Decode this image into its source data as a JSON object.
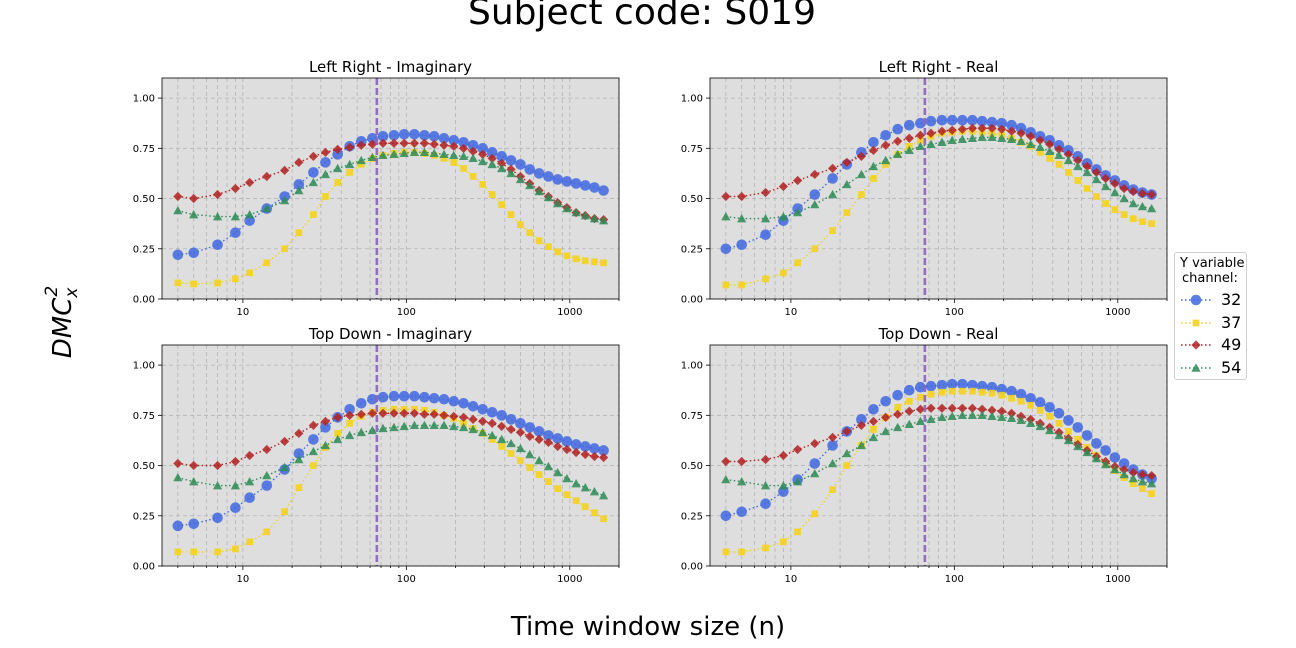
{
  "figure": {
    "suptitle": "Subject code: S019",
    "xlabel": "Time window size (n)",
    "ylabel_base": "DMC",
    "ylabel_sup": "2",
    "ylabel_sub": "x"
  },
  "legend": {
    "title_line1": "Y variable",
    "title_line2": "channel:",
    "entries": [
      {
        "label": "32",
        "color": "#4169e1",
        "marker": "circle"
      },
      {
        "label": "37",
        "color": "#f5d21f",
        "marker": "square"
      },
      {
        "label": "49",
        "color": "#b22222",
        "marker": "diamond"
      },
      {
        "label": "54",
        "color": "#2e8b57",
        "marker": "triangle"
      }
    ]
  },
  "chart_data": [
    {
      "type": "line",
      "title": "Left Right - Imaginary",
      "x_scale": "log",
      "xlim": [
        3.2,
        2000
      ],
      "ylim": [
        0,
        1.1
      ],
      "xticks": [
        10,
        100,
        1000
      ],
      "yticks": [
        0.0,
        0.25,
        0.5,
        0.75,
        1.0
      ],
      "vline_x": 66,
      "grid": true,
      "x": [
        4,
        5,
        7,
        9,
        11,
        14,
        18,
        22,
        27,
        32,
        38,
        45,
        53,
        62,
        72,
        84,
        97,
        112,
        129,
        148,
        170,
        195,
        224,
        256,
        293,
        335,
        383,
        437,
        499,
        569,
        649,
        740,
        843,
        960,
        1093,
        1244,
        1415,
        1610
      ],
      "series": [
        {
          "name": "32",
          "values": [
            0.22,
            0.23,
            0.27,
            0.33,
            0.39,
            0.45,
            0.51,
            0.57,
            0.63,
            0.68,
            0.72,
            0.76,
            0.785,
            0.8,
            0.81,
            0.815,
            0.82,
            0.82,
            0.815,
            0.81,
            0.8,
            0.79,
            0.78,
            0.765,
            0.75,
            0.73,
            0.71,
            0.69,
            0.67,
            0.645,
            0.625,
            0.61,
            0.595,
            0.585,
            0.575,
            0.565,
            0.555,
            0.54
          ]
        },
        {
          "name": "37",
          "values": [
            0.08,
            0.075,
            0.08,
            0.1,
            0.13,
            0.18,
            0.25,
            0.33,
            0.42,
            0.51,
            0.58,
            0.63,
            0.67,
            0.7,
            0.715,
            0.725,
            0.73,
            0.73,
            0.725,
            0.715,
            0.7,
            0.68,
            0.65,
            0.61,
            0.57,
            0.52,
            0.47,
            0.42,
            0.37,
            0.33,
            0.29,
            0.26,
            0.235,
            0.215,
            0.2,
            0.19,
            0.185,
            0.18
          ]
        },
        {
          "name": "49",
          "values": [
            0.51,
            0.5,
            0.52,
            0.55,
            0.58,
            0.61,
            0.64,
            0.68,
            0.71,
            0.73,
            0.745,
            0.755,
            0.765,
            0.77,
            0.775,
            0.775,
            0.775,
            0.775,
            0.775,
            0.77,
            0.765,
            0.76,
            0.75,
            0.735,
            0.72,
            0.7,
            0.675,
            0.645,
            0.61,
            0.575,
            0.54,
            0.51,
            0.48,
            0.455,
            0.43,
            0.415,
            0.4,
            0.395
          ]
        },
        {
          "name": "54",
          "values": [
            0.44,
            0.42,
            0.41,
            0.41,
            0.42,
            0.45,
            0.49,
            0.54,
            0.58,
            0.62,
            0.65,
            0.67,
            0.69,
            0.705,
            0.715,
            0.72,
            0.725,
            0.73,
            0.73,
            0.725,
            0.72,
            0.715,
            0.71,
            0.7,
            0.685,
            0.67,
            0.65,
            0.625,
            0.595,
            0.565,
            0.535,
            0.505,
            0.475,
            0.45,
            0.43,
            0.415,
            0.4,
            0.39
          ]
        }
      ]
    },
    {
      "type": "line",
      "title": "Left Right - Real",
      "x_scale": "log",
      "xlim": [
        3.2,
        2000
      ],
      "ylim": [
        0,
        1.1
      ],
      "xticks": [
        10,
        100,
        1000
      ],
      "yticks": [
        0.0,
        0.25,
        0.5,
        0.75,
        1.0
      ],
      "vline_x": 66,
      "grid": true,
      "x": [
        4,
        5,
        7,
        9,
        11,
        14,
        18,
        22,
        27,
        32,
        38,
        45,
        53,
        62,
        72,
        84,
        97,
        112,
        129,
        148,
        170,
        195,
        224,
        256,
        293,
        335,
        383,
        437,
        499,
        569,
        649,
        740,
        843,
        960,
        1093,
        1244,
        1415,
        1610
      ],
      "series": [
        {
          "name": "32",
          "values": [
            0.25,
            0.27,
            0.32,
            0.39,
            0.45,
            0.52,
            0.6,
            0.67,
            0.73,
            0.78,
            0.815,
            0.845,
            0.865,
            0.875,
            0.885,
            0.89,
            0.89,
            0.89,
            0.89,
            0.885,
            0.88,
            0.875,
            0.865,
            0.85,
            0.83,
            0.81,
            0.79,
            0.765,
            0.74,
            0.71,
            0.675,
            0.645,
            0.615,
            0.59,
            0.565,
            0.545,
            0.53,
            0.52
          ]
        },
        {
          "name": "37",
          "values": [
            0.07,
            0.07,
            0.1,
            0.13,
            0.18,
            0.25,
            0.34,
            0.43,
            0.52,
            0.6,
            0.67,
            0.72,
            0.76,
            0.79,
            0.81,
            0.825,
            0.83,
            0.835,
            0.835,
            0.83,
            0.825,
            0.815,
            0.8,
            0.78,
            0.76,
            0.73,
            0.7,
            0.67,
            0.63,
            0.59,
            0.55,
            0.51,
            0.475,
            0.445,
            0.42,
            0.4,
            0.385,
            0.375
          ]
        },
        {
          "name": "49",
          "values": [
            0.51,
            0.51,
            0.53,
            0.56,
            0.59,
            0.62,
            0.65,
            0.68,
            0.71,
            0.74,
            0.765,
            0.785,
            0.8,
            0.815,
            0.825,
            0.835,
            0.84,
            0.845,
            0.85,
            0.85,
            0.85,
            0.845,
            0.835,
            0.825,
            0.81,
            0.79,
            0.77,
            0.745,
            0.72,
            0.69,
            0.66,
            0.63,
            0.6,
            0.575,
            0.55,
            0.535,
            0.525,
            0.52
          ]
        },
        {
          "name": "54",
          "values": [
            0.41,
            0.4,
            0.4,
            0.41,
            0.43,
            0.47,
            0.52,
            0.57,
            0.62,
            0.66,
            0.69,
            0.72,
            0.74,
            0.76,
            0.77,
            0.78,
            0.79,
            0.795,
            0.8,
            0.805,
            0.805,
            0.8,
            0.795,
            0.785,
            0.77,
            0.755,
            0.735,
            0.715,
            0.69,
            0.66,
            0.63,
            0.595,
            0.56,
            0.53,
            0.5,
            0.475,
            0.46,
            0.45
          ]
        }
      ]
    },
    {
      "type": "line",
      "title": "Top Down - Imaginary",
      "x_scale": "log",
      "xlim": [
        3.2,
        2000
      ],
      "ylim": [
        0,
        1.1
      ],
      "xticks": [
        10,
        100,
        1000
      ],
      "yticks": [
        0.0,
        0.25,
        0.5,
        0.75,
        1.0
      ],
      "vline_x": 66,
      "grid": true,
      "x": [
        4,
        5,
        7,
        9,
        11,
        14,
        18,
        22,
        27,
        32,
        38,
        45,
        53,
        62,
        72,
        84,
        97,
        112,
        129,
        148,
        170,
        195,
        224,
        256,
        293,
        335,
        383,
        437,
        499,
        569,
        649,
        740,
        843,
        960,
        1093,
        1244,
        1415,
        1610
      ],
      "series": [
        {
          "name": "32",
          "values": [
            0.2,
            0.21,
            0.24,
            0.29,
            0.34,
            0.4,
            0.48,
            0.56,
            0.63,
            0.69,
            0.74,
            0.78,
            0.81,
            0.83,
            0.84,
            0.845,
            0.845,
            0.845,
            0.84,
            0.835,
            0.83,
            0.82,
            0.81,
            0.795,
            0.78,
            0.765,
            0.75,
            0.73,
            0.71,
            0.69,
            0.67,
            0.65,
            0.635,
            0.62,
            0.605,
            0.595,
            0.585,
            0.575
          ]
        },
        {
          "name": "37",
          "values": [
            0.07,
            0.07,
            0.07,
            0.085,
            0.12,
            0.17,
            0.27,
            0.39,
            0.5,
            0.59,
            0.66,
            0.71,
            0.745,
            0.765,
            0.775,
            0.78,
            0.78,
            0.78,
            0.775,
            0.765,
            0.75,
            0.735,
            0.71,
            0.685,
            0.66,
            0.63,
            0.595,
            0.56,
            0.525,
            0.49,
            0.455,
            0.42,
            0.385,
            0.355,
            0.325,
            0.295,
            0.265,
            0.235
          ]
        },
        {
          "name": "49",
          "values": [
            0.51,
            0.5,
            0.5,
            0.52,
            0.55,
            0.58,
            0.62,
            0.66,
            0.7,
            0.72,
            0.74,
            0.75,
            0.755,
            0.76,
            0.76,
            0.76,
            0.76,
            0.76,
            0.755,
            0.755,
            0.75,
            0.745,
            0.74,
            0.73,
            0.72,
            0.71,
            0.695,
            0.68,
            0.665,
            0.645,
            0.63,
            0.615,
            0.595,
            0.58,
            0.565,
            0.555,
            0.545,
            0.54
          ]
        },
        {
          "name": "54",
          "values": [
            0.44,
            0.42,
            0.4,
            0.4,
            0.42,
            0.45,
            0.49,
            0.53,
            0.57,
            0.6,
            0.63,
            0.65,
            0.665,
            0.675,
            0.685,
            0.69,
            0.695,
            0.7,
            0.7,
            0.7,
            0.7,
            0.695,
            0.69,
            0.68,
            0.665,
            0.65,
            0.63,
            0.61,
            0.585,
            0.555,
            0.525,
            0.495,
            0.465,
            0.435,
            0.41,
            0.39,
            0.37,
            0.35
          ]
        }
      ]
    },
    {
      "type": "line",
      "title": "Top Down - Real",
      "x_scale": "log",
      "xlim": [
        3.2,
        2000
      ],
      "ylim": [
        0,
        1.1
      ],
      "xticks": [
        10,
        100,
        1000
      ],
      "yticks": [
        0.0,
        0.25,
        0.5,
        0.75,
        1.0
      ],
      "vline_x": 66,
      "grid": true,
      "x": [
        4,
        5,
        7,
        9,
        11,
        14,
        18,
        22,
        27,
        32,
        38,
        45,
        53,
        62,
        72,
        84,
        97,
        112,
        129,
        148,
        170,
        195,
        224,
        256,
        293,
        335,
        383,
        437,
        499,
        569,
        649,
        740,
        843,
        960,
        1093,
        1244,
        1415,
        1610
      ],
      "series": [
        {
          "name": "32",
          "values": [
            0.25,
            0.27,
            0.31,
            0.37,
            0.43,
            0.51,
            0.6,
            0.67,
            0.73,
            0.78,
            0.82,
            0.85,
            0.875,
            0.89,
            0.895,
            0.9,
            0.905,
            0.905,
            0.9,
            0.895,
            0.89,
            0.88,
            0.87,
            0.855,
            0.835,
            0.815,
            0.79,
            0.76,
            0.725,
            0.69,
            0.65,
            0.61,
            0.575,
            0.54,
            0.51,
            0.48,
            0.455,
            0.435
          ]
        },
        {
          "name": "37",
          "values": [
            0.07,
            0.07,
            0.09,
            0.12,
            0.17,
            0.26,
            0.38,
            0.5,
            0.6,
            0.68,
            0.74,
            0.79,
            0.82,
            0.84,
            0.855,
            0.865,
            0.87,
            0.87,
            0.87,
            0.865,
            0.86,
            0.85,
            0.835,
            0.82,
            0.8,
            0.775,
            0.745,
            0.71,
            0.67,
            0.63,
            0.59,
            0.55,
            0.51,
            0.475,
            0.44,
            0.41,
            0.385,
            0.36
          ]
        },
        {
          "name": "49",
          "values": [
            0.52,
            0.52,
            0.53,
            0.55,
            0.58,
            0.61,
            0.64,
            0.67,
            0.7,
            0.72,
            0.74,
            0.755,
            0.77,
            0.78,
            0.785,
            0.785,
            0.785,
            0.785,
            0.785,
            0.78,
            0.775,
            0.77,
            0.76,
            0.745,
            0.73,
            0.71,
            0.69,
            0.665,
            0.635,
            0.605,
            0.575,
            0.545,
            0.52,
            0.495,
            0.48,
            0.465,
            0.455,
            0.45
          ]
        },
        {
          "name": "54",
          "values": [
            0.43,
            0.42,
            0.4,
            0.4,
            0.42,
            0.46,
            0.51,
            0.56,
            0.6,
            0.64,
            0.67,
            0.69,
            0.705,
            0.72,
            0.73,
            0.74,
            0.745,
            0.75,
            0.75,
            0.75,
            0.745,
            0.74,
            0.735,
            0.725,
            0.71,
            0.695,
            0.675,
            0.65,
            0.625,
            0.595,
            0.565,
            0.535,
            0.505,
            0.48,
            0.455,
            0.435,
            0.42,
            0.41
          ]
        }
      ]
    }
  ]
}
